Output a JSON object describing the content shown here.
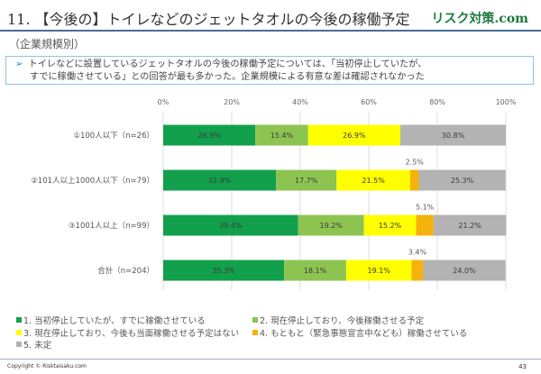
{
  "header": {
    "title": "11. 【今後の】トイレなどのジェットタオルの今後の稼働予定",
    "brand": "リスク対策.com",
    "subtitle": "（企業規模別）",
    "note_line1": "トイレなどに設置しているジェットタオルの今後の稼働予定については、「当初停止していたが、",
    "note_line2": "すでに稼働させている」との回答が最も多かった。企業規模による有意な差は確認されなかった"
  },
  "chart_data": {
    "type": "bar",
    "orientation": "horizontal",
    "stacked": true,
    "categories": [
      "①100人以下（n=26）",
      "②101人以上1000人以下（n=79）",
      "③1001人以上（n=99）",
      "合計（n=204）"
    ],
    "x_ticks": [
      "0%",
      "20%",
      "40%",
      "60%",
      "80%",
      "100%"
    ],
    "xlim": [
      0,
      100
    ],
    "grid": true,
    "legend_position": "bottom",
    "series": [
      {
        "name": "1. 当初停止していたが、すでに稼働させている",
        "color": "#13a04c",
        "values": [
          26.9,
          32.9,
          39.4,
          35.3
        ]
      },
      {
        "name": "2. 現在停止しており、今後稼働させる予定",
        "color": "#8dc451",
        "values": [
          15.4,
          17.7,
          19.2,
          18.1
        ]
      },
      {
        "name": "3. 現在停止しており、今後も当面稼働させる予定はない",
        "color": "#ffff00",
        "values": [
          26.9,
          21.5,
          15.2,
          19.1
        ]
      },
      {
        "name": "4. もともと（緊急事態宣言中なども）稼働させている",
        "color": "#f5b10c",
        "values": [
          0,
          2.5,
          5.1,
          3.4
        ]
      },
      {
        "name": "5. 未定",
        "color": "#b3b3b3",
        "values": [
          30.8,
          25.3,
          21.2,
          24.0
        ]
      }
    ]
  },
  "footer": {
    "copyright": "Copyright © Risktaisaku.com",
    "page": "43"
  }
}
